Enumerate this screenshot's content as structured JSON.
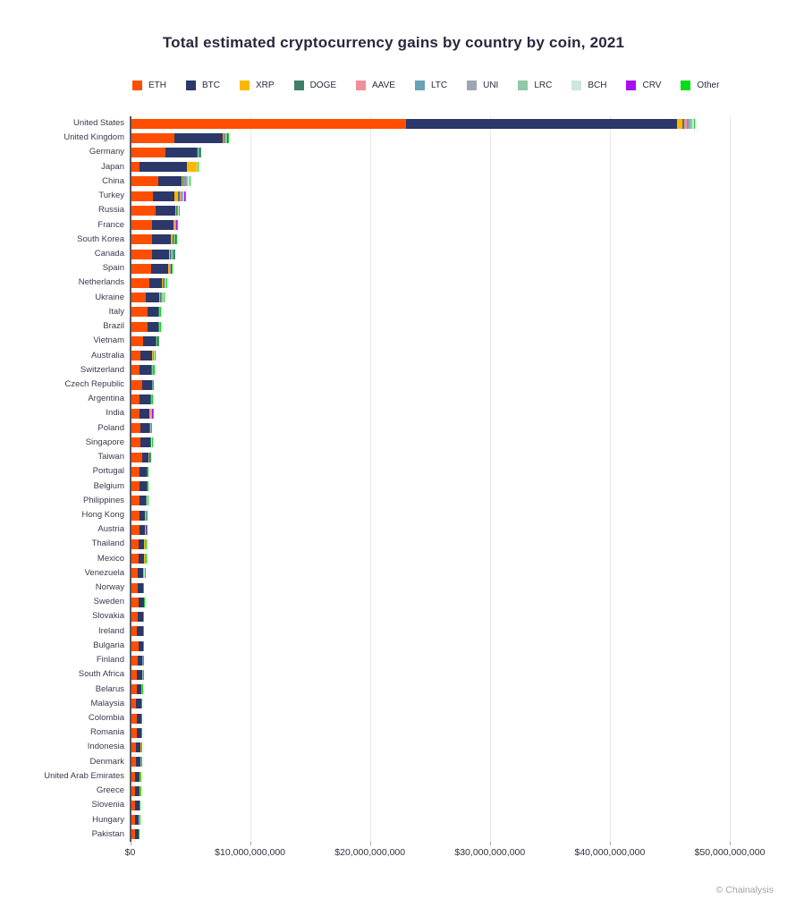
{
  "title": "Total estimated cryptocurrency gains by country by coin, 2021",
  "attribution": "© Chainalysis",
  "chart_data": {
    "type": "bar",
    "orientation": "horizontal",
    "stacked": true,
    "unit": "USD",
    "value_scale": "billions",
    "legend_position": "top",
    "grid": "vertical",
    "xlim_billions": [
      0,
      52.8
    ],
    "x_ticks": [
      {
        "value": 0,
        "label": "$0"
      },
      {
        "value": 10,
        "label": "$10,000,000,000"
      },
      {
        "value": 20,
        "label": "$20,000,000,000"
      },
      {
        "value": 30,
        "label": "$30,000,000,000"
      },
      {
        "value": 40,
        "label": "$40,000,000,000"
      },
      {
        "value": 50,
        "label": "$50,000,000,000"
      }
    ],
    "categories": [
      "United States",
      "United Kingdom",
      "Germany",
      "Japan",
      "China",
      "Turkey",
      "Russia",
      "France",
      "South Korea",
      "Canada",
      "Spain",
      "Netherlands",
      "Ukraine",
      "Italy",
      "Brazil",
      "Vietnam",
      "Australia",
      "Switzerland",
      "Czech Republic",
      "Argentina",
      "India",
      "Poland",
      "Singapore",
      "Taiwan",
      "Portugal",
      "Belgium",
      "Philippines",
      "Hong Kong",
      "Austria",
      "Thailand",
      "Mexico",
      "Venezuela",
      "Norway",
      "Sweden",
      "Slovakia",
      "Ireland",
      "Bulgaria",
      "Finland",
      "South Africa",
      "Belarus",
      "Malaysia",
      "Colombia",
      "Romania",
      "Indonesia",
      "Denmark",
      "United Arab Emirates",
      "Greece",
      "Slovenia",
      "Hungary",
      "Pakistan"
    ],
    "series": [
      {
        "name": "ETH",
        "color": "#FF4E00",
        "values": [
          22.9,
          3.6,
          2.86,
          0.65,
          2.25,
          1.81,
          2.05,
          1.73,
          1.73,
          1.68,
          1.64,
          1.52,
          1.2,
          1.31,
          1.31,
          1.0,
          0.77,
          0.7,
          0.9,
          0.7,
          0.7,
          0.74,
          0.77,
          0.9,
          0.65,
          0.65,
          0.7,
          0.65,
          0.7,
          0.58,
          0.58,
          0.5,
          0.5,
          0.58,
          0.5,
          0.46,
          0.6,
          0.5,
          0.46,
          0.46,
          0.41,
          0.46,
          0.46,
          0.35,
          0.35,
          0.33,
          0.33,
          0.33,
          0.28,
          0.28
        ]
      },
      {
        "name": "BTC",
        "color": "#2B3869",
        "values": [
          22.6,
          3.99,
          2.56,
          3.98,
          1.89,
          1.79,
          1.6,
          1.79,
          1.55,
          1.47,
          1.4,
          1.05,
          1.1,
          0.92,
          0.92,
          0.98,
          0.96,
          0.94,
          0.78,
          0.86,
          0.79,
          0.75,
          0.79,
          0.49,
          0.59,
          0.61,
          0.5,
          0.49,
          0.44,
          0.49,
          0.49,
          0.5,
          0.46,
          0.44,
          0.44,
          0.48,
          0.34,
          0.4,
          0.44,
          0.39,
          0.39,
          0.34,
          0.34,
          0.4,
          0.4,
          0.37,
          0.37,
          0.32,
          0.32,
          0.32
        ]
      },
      {
        "name": "XRP",
        "color": "#FFB600",
        "values": [
          0.44,
          0.1,
          0.06,
          0.79,
          0.12,
          0.3,
          0.08,
          0.06,
          0.15,
          0.08,
          0.07,
          0.06,
          0.08,
          0.04,
          0.03,
          0.05,
          0.04,
          0.03,
          0.03,
          0.04,
          0.05,
          0.03,
          0.03,
          0.03,
          0.05,
          0.03,
          0.03,
          0.05,
          0.03,
          0.05,
          0.02,
          0.02,
          0.01,
          0.01,
          0.01,
          0.01,
          0.01,
          0.02,
          0.01,
          0.01,
          0.01,
          0.01,
          0.01,
          0.04,
          0.01,
          0.01,
          0.01,
          0.01,
          0.01,
          0.01
        ]
      },
      {
        "name": "DOGE",
        "color": "#3E7E6B",
        "values": [
          0.15,
          0.06,
          0.04,
          0.01,
          0.1,
          0.1,
          0.04,
          0.03,
          0.05,
          0.05,
          0.04,
          0.04,
          0.05,
          0.03,
          0.02,
          0.03,
          0.03,
          0.02,
          0.02,
          0.03,
          0.04,
          0.02,
          0.02,
          0.02,
          0.02,
          0.02,
          0.02,
          0.02,
          0.01,
          0.02,
          0.02,
          0.01,
          0.01,
          0.01,
          0.01,
          0.01,
          0.01,
          0.01,
          0.01,
          0.01,
          0.01,
          0.01,
          0.01,
          0.01,
          0.01,
          0.01,
          0.01,
          0.01,
          0.01,
          0.01
        ]
      },
      {
        "name": "AAVE",
        "color": "#EE8F9B",
        "values": [
          0.22,
          0.05,
          0.03,
          0.01,
          0.05,
          0.15,
          0.04,
          0.04,
          0.04,
          0.1,
          0.04,
          0.04,
          0.04,
          0.02,
          0.02,
          0.03,
          0.02,
          0.02,
          0.02,
          0.03,
          0.03,
          0.02,
          0.02,
          0.04,
          0.02,
          0.01,
          0.02,
          0.02,
          0.01,
          0.02,
          0.03,
          0.01,
          0.0,
          0.0,
          0.0,
          0.0,
          0.01,
          0.0,
          0.0,
          0.0,
          0.0,
          0.03,
          0.0,
          0.0,
          0.0,
          0.0,
          0.02,
          0.0,
          0.0,
          0.0
        ]
      },
      {
        "name": "LTC",
        "color": "#68A2B3",
        "values": [
          0.15,
          0.05,
          0.05,
          0.02,
          0.15,
          0.08,
          0.04,
          0.03,
          0.04,
          0.04,
          0.04,
          0.05,
          0.06,
          0.03,
          0.02,
          0.03,
          0.03,
          0.02,
          0.02,
          0.02,
          0.03,
          0.02,
          0.02,
          0.02,
          0.01,
          0.01,
          0.01,
          0.01,
          0.01,
          0.01,
          0.01,
          0.02,
          0.01,
          0.01,
          0.01,
          0.01,
          0.0,
          0.01,
          0.01,
          0.01,
          0.01,
          0.0,
          0.01,
          0.01,
          0.01,
          0.01,
          0.0,
          0.01,
          0.01,
          0.0
        ]
      },
      {
        "name": "UNI",
        "color": "#9DA6B2",
        "values": [
          0.15,
          0.04,
          0.04,
          0.01,
          0.1,
          0.05,
          0.03,
          0.03,
          0.03,
          0.03,
          0.03,
          0.04,
          0.04,
          0.02,
          0.02,
          0.02,
          0.02,
          0.02,
          0.02,
          0.02,
          0.02,
          0.02,
          0.01,
          0.01,
          0.01,
          0.01,
          0.01,
          0.01,
          0.01,
          0.01,
          0.01,
          0.01,
          0.0,
          0.0,
          0.0,
          0.0,
          0.0,
          0.0,
          0.0,
          0.0,
          0.0,
          0.0,
          0.0,
          0.0,
          0.0,
          0.0,
          0.0,
          0.0,
          0.0,
          0.0
        ]
      },
      {
        "name": "LRC",
        "color": "#90C8A8",
        "values": [
          0.15,
          0.08,
          0.03,
          0.01,
          0.08,
          0.05,
          0.03,
          0.03,
          0.04,
          0.04,
          0.03,
          0.05,
          0.05,
          0.02,
          0.02,
          0.03,
          0.02,
          0.02,
          0.02,
          0.02,
          0.03,
          0.02,
          0.02,
          0.01,
          0.01,
          0.01,
          0.01,
          0.01,
          0.01,
          0.01,
          0.01,
          0.01,
          0.01,
          0.01,
          0.01,
          0.01,
          0.01,
          0.01,
          0.01,
          0.01,
          0.01,
          0.01,
          0.01,
          0.01,
          0.01,
          0.03,
          0.01,
          0.01,
          0.01,
          0.01
        ]
      },
      {
        "name": "BCH",
        "color": "#CCE8DA",
        "values": [
          0.12,
          0.04,
          0.03,
          0.01,
          0.1,
          0.04,
          0.03,
          0.02,
          0.03,
          0.03,
          0.03,
          0.04,
          0.04,
          0.02,
          0.01,
          0.02,
          0.02,
          0.02,
          0.01,
          0.02,
          0.02,
          0.01,
          0.01,
          0.01,
          0.01,
          0.01,
          0.01,
          0.01,
          0.01,
          0.01,
          0.01,
          0.01,
          0.0,
          0.0,
          0.01,
          0.0,
          0.0,
          0.0,
          0.0,
          0.0,
          0.0,
          0.0,
          0.0,
          0.0,
          0.0,
          0.0,
          0.0,
          0.0,
          0.0,
          0.0
        ]
      },
      {
        "name": "CRV",
        "color": "#A90DF2",
        "values": [
          0.05,
          0.03,
          0.02,
          0.01,
          0.02,
          0.1,
          0.02,
          0.02,
          0.06,
          0.03,
          0.02,
          0.03,
          0.02,
          0.01,
          0.01,
          0.02,
          0.02,
          0.02,
          0.01,
          0.01,
          0.06,
          0.01,
          0.01,
          0.01,
          0.01,
          0.01,
          0.01,
          0.01,
          0.01,
          0.01,
          0.01,
          0.01,
          0.0,
          0.0,
          0.0,
          0.0,
          0.0,
          0.0,
          0.0,
          0.0,
          0.0,
          0.0,
          0.0,
          0.0,
          0.0,
          0.0,
          0.0,
          0.0,
          0.03,
          0.0
        ]
      },
      {
        "name": "Other",
        "color": "#00DE14",
        "values": [
          0.05,
          0.06,
          0.04,
          0.01,
          0.03,
          0.04,
          0.04,
          0.03,
          0.03,
          0.03,
          0.03,
          0.05,
          0.04,
          0.02,
          0.02,
          0.03,
          0.1,
          0.12,
          0.03,
          0.02,
          0.02,
          0.05,
          0.02,
          0.01,
          0.01,
          0.01,
          0.01,
          0.01,
          0.01,
          0.01,
          0.01,
          0.01,
          0.01,
          0.01,
          0.01,
          0.01,
          0.01,
          0.01,
          0.01,
          0.01,
          0.03,
          0.01,
          0.01,
          0.01,
          0.01,
          0.01,
          0.01,
          0.01,
          0.01,
          0.02
        ]
      }
    ]
  }
}
